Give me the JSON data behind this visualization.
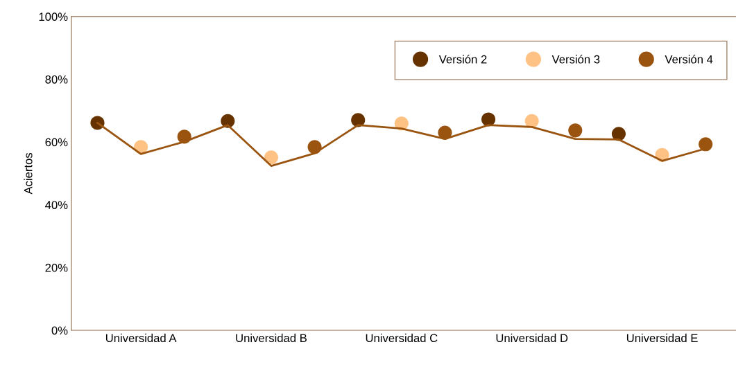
{
  "chart_data": {
    "type": "scatter",
    "ylabel": "Aciertos",
    "categories": [
      null,
      "Universidad A",
      null,
      null,
      "Universidad B",
      null,
      null,
      "Universidad C",
      null,
      null,
      "Universidad D",
      null,
      null,
      "Universidad E",
      null
    ],
    "series": [
      {
        "type": "line",
        "marker": "none",
        "color": "#9a5410",
        "values": [
          66.1,
          56.2,
          60.1,
          65.4,
          52.4,
          56.4,
          65.4,
          64.3,
          61.0,
          65.4,
          64.8,
          61.0,
          60.8,
          54.0,
          57.9
        ]
      },
      {
        "name": "Versión 2",
        "color": "#663300",
        "values": [
          66.1,
          null,
          null,
          66.7,
          null,
          null,
          67.0,
          null,
          null,
          67.2,
          null,
          null,
          62.6,
          null,
          null
        ]
      },
      {
        "name": "Versión 3",
        "color": "#ffc285",
        "values": [
          null,
          58.4,
          null,
          null,
          55.1,
          null,
          null,
          65.9,
          null,
          null,
          66.7,
          null,
          null,
          55.9,
          null
        ]
      },
      {
        "name": "Versión 4",
        "color": "#9a5410",
        "values": [
          null,
          null,
          61.7,
          null,
          null,
          58.4,
          null,
          null,
          63.0,
          null,
          null,
          63.7,
          null,
          null,
          59.3
        ]
      }
    ],
    "ylim": [
      0,
      100
    ],
    "yticks": [
      {
        "value": 0,
        "label": "0%"
      },
      {
        "value": 20,
        "label": "20%"
      },
      {
        "value": 40,
        "label": "40%"
      },
      {
        "value": 60,
        "label": "60%"
      },
      {
        "value": 80,
        "label": "80%"
      },
      {
        "value": 100,
        "label": "100%"
      }
    ],
    "grid": false,
    "legend": "top right",
    "marker": "circle"
  }
}
